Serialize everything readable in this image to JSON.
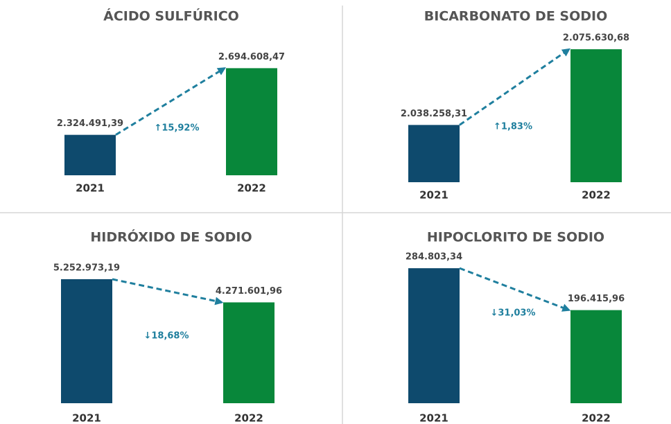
{
  "chart_data": [
    {
      "type": "bar",
      "title": "ÁCIDO SULFÚRICO",
      "categories": [
        "2021",
        "2022"
      ],
      "values": [
        2324491.39,
        2694608.47
      ],
      "value_labels": [
        "2.324.491,39",
        "2.694.608,47"
      ],
      "colors": [
        "#0e4a6d",
        "#08873a"
      ],
      "ylim": [
        2100000,
        2700000
      ],
      "annotation": "↑15,92%"
    },
    {
      "type": "bar",
      "title": "BICARBONATO DE SODIO",
      "categories": [
        "2021",
        "2022"
      ],
      "values": [
        2038258.31,
        2075630.68
      ],
      "value_labels": [
        "2.038.258,31",
        "2.075.630,68"
      ],
      "colors": [
        "#0e4a6d",
        "#08873a"
      ],
      "ylim": [
        2010000,
        2076000
      ],
      "annotation": "↑1,83%"
    },
    {
      "type": "bar",
      "title": "HIDRÓXIDO DE SODIO",
      "categories": [
        "2021",
        "2022"
      ],
      "values": [
        5252973.19,
        4271601.96
      ],
      "value_labels": [
        "5.252.973,19",
        "4.271.601,96"
      ],
      "colors": [
        "#0e4a6d",
        "#08873a"
      ],
      "ylim": [
        0,
        5253000
      ],
      "annotation": "↓18,68%"
    },
    {
      "type": "bar",
      "title": "HIPOCLORITO DE SODIO",
      "categories": [
        "2021",
        "2022"
      ],
      "values": [
        284803.34,
        196415.96
      ],
      "value_labels": [
        "284.803,34",
        "196.415,96"
      ],
      "colors": [
        "#0e4a6d",
        "#08873a"
      ],
      "ylim": [
        0,
        285000
      ],
      "annotation": "↓31,03%"
    }
  ]
}
